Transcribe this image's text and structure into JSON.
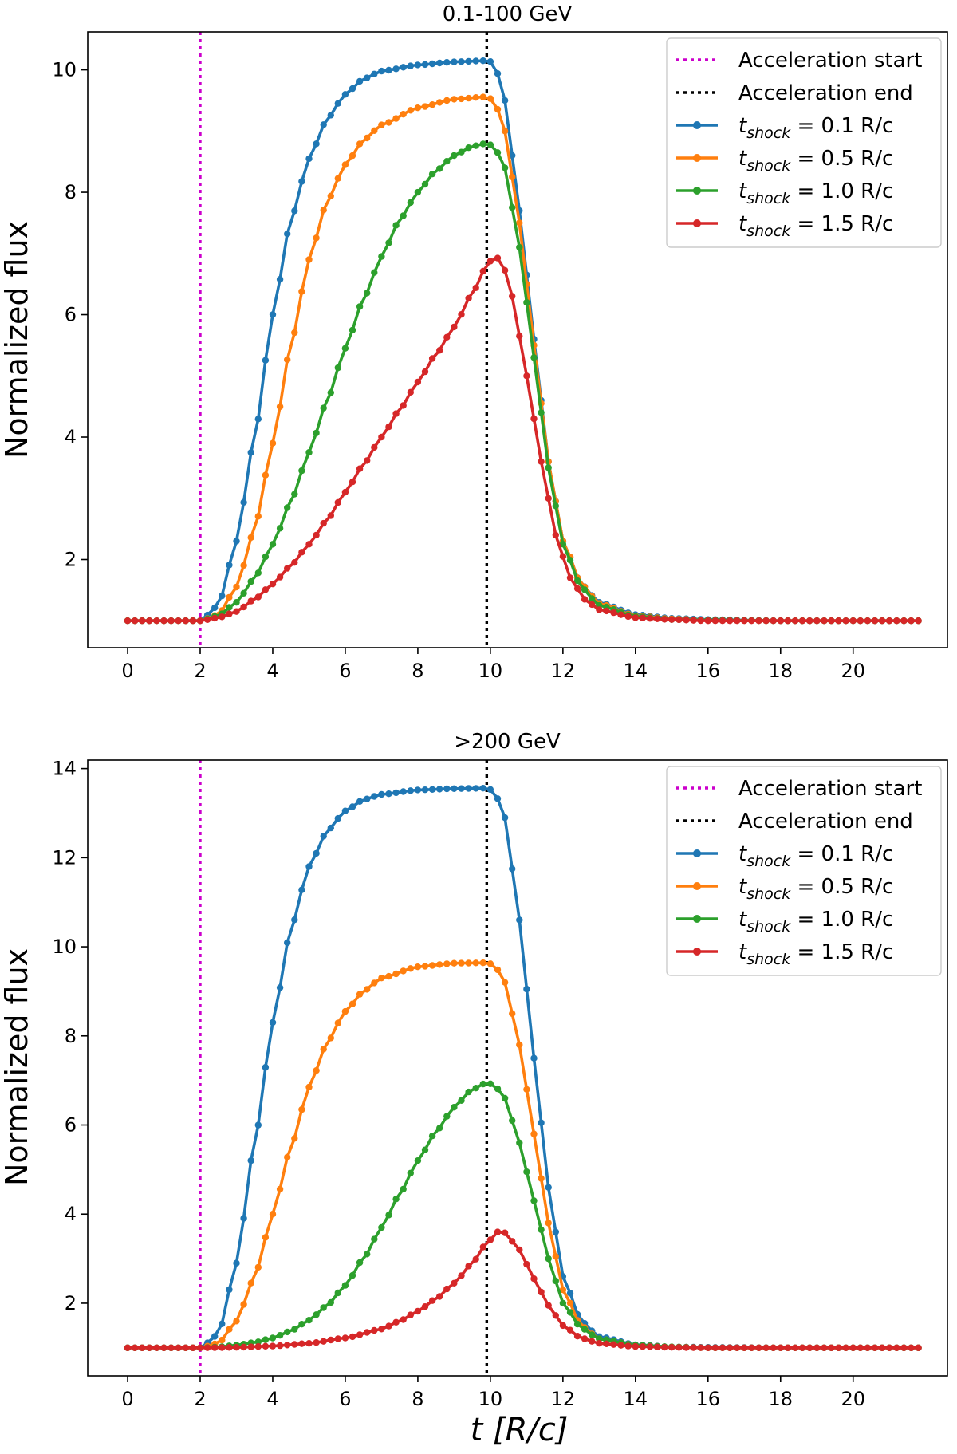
{
  "chart_data": [
    {
      "type": "line",
      "title": "0.1-100 GeV",
      "xlabel": "",
      "ylabel": "Normalized flux",
      "xlim": [
        -1.1,
        22.6
      ],
      "ylim": [
        0.56,
        10.62
      ],
      "xticks": [
        "0",
        "2",
        "4",
        "6",
        "8",
        "10",
        "12",
        "14",
        "16",
        "18",
        "20"
      ],
      "yticks": [
        "2",
        "4",
        "6",
        "8",
        "10"
      ],
      "vlines": [
        {
          "name": "Acceleration start",
          "x": 2.0,
          "color": "#cc00cc"
        },
        {
          "name": "Acceleration end",
          "x": 9.9,
          "color": "#000000"
        }
      ],
      "series": [
        {
          "name": "t_shock = 0.1 R/c",
          "label_main": "t",
          "label_sub": "shock",
          "label_rest": " = 0.1 R/c",
          "color": "#1f77b4",
          "points": [
            [
              0,
              1.0
            ],
            [
              1,
              1.0
            ],
            [
              2,
              1.0
            ],
            [
              2.5,
              1.25
            ],
            [
              3,
              2.3
            ],
            [
              3.5,
              4.0
            ],
            [
              4,
              6.0
            ],
            [
              4.5,
              7.55
            ],
            [
              5,
              8.55
            ],
            [
              5.5,
              9.2
            ],
            [
              6,
              9.6
            ],
            [
              6.5,
              9.85
            ],
            [
              7,
              9.98
            ],
            [
              8,
              10.08
            ],
            [
              9,
              10.13
            ],
            [
              9.9,
              10.15
            ],
            [
              10.1,
              10.12
            ],
            [
              10.4,
              9.5
            ],
            [
              10.8,
              7.7
            ],
            [
              11.2,
              5.6
            ],
            [
              11.6,
              3.6
            ],
            [
              12,
              2.3
            ],
            [
              12.5,
              1.6
            ],
            [
              13,
              1.3
            ],
            [
              14,
              1.1
            ],
            [
              15,
              1.04
            ],
            [
              16,
              1.02
            ],
            [
              18,
              1.0
            ],
            [
              21.8,
              1.0
            ]
          ]
        },
        {
          "name": "t_shock = 0.5 R/c",
          "label_main": "t",
          "label_sub": "shock",
          "label_rest": " = 0.5 R/c",
          "color": "#ff7f0e",
          "points": [
            [
              0,
              1.0
            ],
            [
              1,
              1.0
            ],
            [
              2,
              1.0
            ],
            [
              2.5,
              1.1
            ],
            [
              3,
              1.55
            ],
            [
              3.5,
              2.5
            ],
            [
              4,
              3.9
            ],
            [
              4.5,
              5.5
            ],
            [
              5,
              6.9
            ],
            [
              5.5,
              7.85
            ],
            [
              6,
              8.45
            ],
            [
              6.5,
              8.85
            ],
            [
              7,
              9.1
            ],
            [
              8,
              9.38
            ],
            [
              9,
              9.52
            ],
            [
              9.9,
              9.56
            ],
            [
              10.1,
              9.5
            ],
            [
              10.4,
              9.0
            ],
            [
              10.8,
              7.5
            ],
            [
              11.2,
              5.5
            ],
            [
              11.6,
              3.6
            ],
            [
              12,
              2.3
            ],
            [
              12.5,
              1.6
            ],
            [
              13,
              1.28
            ],
            [
              14,
              1.08
            ],
            [
              15,
              1.03
            ],
            [
              16,
              1.01
            ],
            [
              18,
              1.0
            ],
            [
              21.8,
              1.0
            ]
          ]
        },
        {
          "name": "t_shock = 1.0 R/c",
          "label_main": "t",
          "label_sub": "shock",
          "label_rest": " = 1.0 R/c",
          "color": "#2ca02c",
          "points": [
            [
              0,
              1.0
            ],
            [
              1,
              1.0
            ],
            [
              2,
              1.0
            ],
            [
              2.5,
              1.08
            ],
            [
              3,
              1.3
            ],
            [
              3.5,
              1.7
            ],
            [
              4,
              2.25
            ],
            [
              4.5,
              2.95
            ],
            [
              5,
              3.75
            ],
            [
              5.5,
              4.6
            ],
            [
              6,
              5.45
            ],
            [
              6.5,
              6.25
            ],
            [
              7,
              6.95
            ],
            [
              7.5,
              7.55
            ],
            [
              8,
              8.0
            ],
            [
              8.5,
              8.35
            ],
            [
              9,
              8.6
            ],
            [
              9.5,
              8.75
            ],
            [
              9.9,
              8.8
            ],
            [
              10.1,
              8.75
            ],
            [
              10.4,
              8.4
            ],
            [
              10.8,
              7.1
            ],
            [
              11.2,
              5.3
            ],
            [
              11.6,
              3.5
            ],
            [
              12,
              2.25
            ],
            [
              12.5,
              1.55
            ],
            [
              13,
              1.25
            ],
            [
              14,
              1.07
            ],
            [
              15,
              1.02
            ],
            [
              16,
              1.01
            ],
            [
              18,
              1.0
            ],
            [
              21.8,
              1.0
            ]
          ]
        },
        {
          "name": "t_shock = 1.5 R/c",
          "label_main": "t",
          "label_sub": "shock",
          "label_rest": " = 1.5 R/c",
          "color": "#d62728",
          "points": [
            [
              0,
              1.0
            ],
            [
              1,
              1.0
            ],
            [
              2,
              1.0
            ],
            [
              2.5,
              1.05
            ],
            [
              3,
              1.15
            ],
            [
              3.5,
              1.35
            ],
            [
              4,
              1.6
            ],
            [
              4.5,
              1.9
            ],
            [
              5,
              2.25
            ],
            [
              5.5,
              2.65
            ],
            [
              6,
              3.1
            ],
            [
              6.5,
              3.55
            ],
            [
              7,
              4.0
            ],
            [
              7.5,
              4.45
            ],
            [
              8,
              4.9
            ],
            [
              8.5,
              5.35
            ],
            [
              9,
              5.8
            ],
            [
              9.5,
              6.35
            ],
            [
              9.9,
              6.8
            ],
            [
              10.1,
              6.95
            ],
            [
              10.3,
              6.9
            ],
            [
              10.6,
              6.3
            ],
            [
              11,
              5.0
            ],
            [
              11.4,
              3.6
            ],
            [
              11.8,
              2.4
            ],
            [
              12.2,
              1.7
            ],
            [
              12.6,
              1.35
            ],
            [
              13,
              1.18
            ],
            [
              14,
              1.05
            ],
            [
              15,
              1.02
            ],
            [
              16,
              1.0
            ],
            [
              18,
              1.0
            ],
            [
              21.8,
              1.0
            ]
          ]
        }
      ]
    },
    {
      "type": "line",
      "title": ">200 GeV",
      "xlabel": "t [R/c]",
      "ylabel": "Normalized flux",
      "xlim": [
        -1.1,
        22.6
      ],
      "ylim": [
        0.37,
        14.19
      ],
      "xticks": [
        "0",
        "2",
        "4",
        "6",
        "8",
        "10",
        "12",
        "14",
        "16",
        "18",
        "20"
      ],
      "yticks": [
        "2",
        "4",
        "6",
        "8",
        "10",
        "12",
        "14"
      ],
      "vlines": [
        {
          "name": "Acceleration start",
          "x": 2.0,
          "color": "#cc00cc"
        },
        {
          "name": "Acceleration end",
          "x": 9.9,
          "color": "#000000"
        }
      ],
      "series": [
        {
          "name": "t_shock = 0.1 R/c",
          "label_main": "t",
          "label_sub": "shock",
          "label_rest": " = 0.1 R/c",
          "color": "#1f77b4",
          "points": [
            [
              0,
              1.0
            ],
            [
              1,
              1.0
            ],
            [
              2,
              1.0
            ],
            [
              2.5,
              1.3
            ],
            [
              3,
              2.9
            ],
            [
              3.5,
              5.6
            ],
            [
              4,
              8.3
            ],
            [
              4.5,
              10.4
            ],
            [
              5,
              11.8
            ],
            [
              5.5,
              12.6
            ],
            [
              6,
              13.05
            ],
            [
              6.5,
              13.3
            ],
            [
              7,
              13.42
            ],
            [
              8,
              13.52
            ],
            [
              9,
              13.55
            ],
            [
              9.9,
              13.56
            ],
            [
              10.1,
              13.5
            ],
            [
              10.4,
              12.9
            ],
            [
              10.8,
              10.6
            ],
            [
              11.2,
              7.5
            ],
            [
              11.6,
              4.6
            ],
            [
              12,
              2.6
            ],
            [
              12.5,
              1.6
            ],
            [
              13,
              1.25
            ],
            [
              14,
              1.07
            ],
            [
              15,
              1.02
            ],
            [
              16,
              1.01
            ],
            [
              18,
              1.0
            ],
            [
              21.8,
              1.0
            ]
          ]
        },
        {
          "name": "t_shock = 0.5 R/c",
          "label_main": "t",
          "label_sub": "shock",
          "label_rest": " = 0.5 R/c",
          "color": "#ff7f0e",
          "points": [
            [
              0,
              1.0
            ],
            [
              1,
              1.0
            ],
            [
              2,
              1.0
            ],
            [
              2.5,
              1.1
            ],
            [
              3,
              1.6
            ],
            [
              3.5,
              2.6
            ],
            [
              4,
              4.0
            ],
            [
              4.5,
              5.5
            ],
            [
              5,
              6.85
            ],
            [
              5.5,
              7.85
            ],
            [
              6,
              8.55
            ],
            [
              6.5,
              9.0
            ],
            [
              7,
              9.3
            ],
            [
              8,
              9.55
            ],
            [
              9,
              9.63
            ],
            [
              9.9,
              9.64
            ],
            [
              10.1,
              9.6
            ],
            [
              10.4,
              9.2
            ],
            [
              10.8,
              7.8
            ],
            [
              11.2,
              5.8
            ],
            [
              11.6,
              3.8
            ],
            [
              12,
              2.3
            ],
            [
              12.5,
              1.5
            ],
            [
              13,
              1.2
            ],
            [
              14,
              1.06
            ],
            [
              15,
              1.02
            ],
            [
              16,
              1.0
            ],
            [
              18,
              1.0
            ],
            [
              21.8,
              1.0
            ]
          ]
        },
        {
          "name": "t_shock = 1.0 R/c",
          "label_main": "t",
          "label_sub": "shock",
          "label_rest": " = 1.0 R/c",
          "color": "#2ca02c",
          "points": [
            [
              0,
              1.0
            ],
            [
              1,
              1.0
            ],
            [
              2,
              1.0
            ],
            [
              2.5,
              1.02
            ],
            [
              3,
              1.06
            ],
            [
              3.5,
              1.12
            ],
            [
              4,
              1.22
            ],
            [
              4.5,
              1.38
            ],
            [
              5,
              1.62
            ],
            [
              5.5,
              1.95
            ],
            [
              6,
              2.4
            ],
            [
              6.5,
              3.0
            ],
            [
              7,
              3.7
            ],
            [
              7.5,
              4.45
            ],
            [
              8,
              5.2
            ],
            [
              8.5,
              5.85
            ],
            [
              9,
              6.4
            ],
            [
              9.5,
              6.8
            ],
            [
              9.9,
              6.95
            ],
            [
              10.1,
              6.9
            ],
            [
              10.4,
              6.6
            ],
            [
              10.8,
              5.6
            ],
            [
              11.2,
              4.3
            ],
            [
              11.6,
              3.0
            ],
            [
              12,
              2.0
            ],
            [
              12.5,
              1.45
            ],
            [
              13,
              1.2
            ],
            [
              14,
              1.06
            ],
            [
              15,
              1.02
            ],
            [
              16,
              1.0
            ],
            [
              18,
              1.0
            ],
            [
              21.8,
              1.0
            ]
          ]
        },
        {
          "name": "t_shock = 1.5 R/c",
          "label_main": "t",
          "label_sub": "shock",
          "label_rest": " = 1.5 R/c",
          "color": "#d62728",
          "points": [
            [
              0,
              1.0
            ],
            [
              1,
              1.0
            ],
            [
              2,
              1.0
            ],
            [
              3,
              1.01
            ],
            [
              4,
              1.04
            ],
            [
              5,
              1.1
            ],
            [
              6,
              1.22
            ],
            [
              7,
              1.42
            ],
            [
              7.5,
              1.6
            ],
            [
              8,
              1.82
            ],
            [
              8.5,
              2.1
            ],
            [
              9,
              2.45
            ],
            [
              9.5,
              2.9
            ],
            [
              9.9,
              3.35
            ],
            [
              10.2,
              3.6
            ],
            [
              10.4,
              3.58
            ],
            [
              10.8,
              3.2
            ],
            [
              11.2,
              2.55
            ],
            [
              11.6,
              1.95
            ],
            [
              12,
              1.5
            ],
            [
              12.5,
              1.22
            ],
            [
              13,
              1.1
            ],
            [
              14,
              1.03
            ],
            [
              15,
              1.01
            ],
            [
              16,
              1.0
            ],
            [
              18,
              1.0
            ],
            [
              21.8,
              1.0
            ]
          ]
        }
      ]
    }
  ]
}
